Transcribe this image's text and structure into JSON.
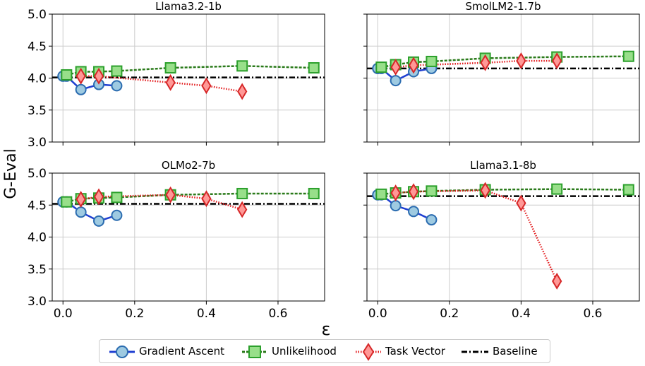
{
  "ylabel": "G-Eval",
  "xlabel": "ε",
  "colors": {
    "gradient_ascent_line": "#1f3fd1",
    "gradient_ascent_marker": "#9ecae1",
    "gradient_ascent_edge": "#2b6cb0",
    "unlikelihood_line": "#2a7a1a",
    "unlikelihood_marker": "#98df8a",
    "unlikelihood_edge": "#2ca02c",
    "task_vector_line": "#e31a1c",
    "task_vector_marker": "#ff9896",
    "task_vector_edge": "#d62728",
    "baseline": "#000000",
    "grid": "#cccccc"
  },
  "legend": {
    "items": [
      {
        "label": "Gradient Ascent",
        "icon": "circle-marker-solid-line"
      },
      {
        "label": "Unlikelihood",
        "icon": "square-marker-dashed-line"
      },
      {
        "label": "Task Vector",
        "icon": "diamond-marker-dotted-line"
      },
      {
        "label": "Baseline",
        "icon": "dash-dot-line"
      }
    ]
  },
  "chart_data": [
    {
      "type": "line",
      "title": "Llama3.2-1b",
      "xlim": [
        -0.03,
        0.73
      ],
      "ylim": [
        3.0,
        5.0
      ],
      "xticks": [
        "0.0",
        "0.2",
        "0.4",
        "0.6"
      ],
      "yticks": [
        "3.0",
        "3.5",
        "4.0",
        "4.5",
        "5.0"
      ],
      "baseline": 4.01,
      "series": [
        {
          "name": "Gradient Ascent",
          "x": [
            0.0,
            0.01,
            0.05,
            0.1,
            0.15
          ],
          "y": [
            4.03,
            4.03,
            3.82,
            3.9,
            3.88
          ]
        },
        {
          "name": "Unlikelihood",
          "x": [
            0.01,
            0.05,
            0.1,
            0.15,
            0.3,
            0.5,
            0.7
          ],
          "y": [
            4.05,
            4.1,
            4.1,
            4.11,
            4.16,
            4.19,
            4.16
          ]
        },
        {
          "name": "Task Vector",
          "x": [
            0.05,
            0.1,
            0.3,
            0.4,
            0.5
          ],
          "y": [
            4.03,
            4.03,
            3.93,
            3.88,
            3.79
          ]
        }
      ]
    },
    {
      "type": "line",
      "title": "SmolLM2-1.7b",
      "xlim": [
        -0.03,
        0.73
      ],
      "ylim": [
        3.0,
        5.0
      ],
      "xticks": [
        "0.0",
        "0.2",
        "0.4",
        "0.6"
      ],
      "yticks": [
        "3.0",
        "3.5",
        "4.0",
        "4.5",
        "5.0"
      ],
      "baseline": 4.15,
      "series": [
        {
          "name": "Gradient Ascent",
          "x": [
            0.0,
            0.01,
            0.05,
            0.1,
            0.15
          ],
          "y": [
            4.15,
            4.15,
            3.96,
            4.1,
            4.15
          ]
        },
        {
          "name": "Unlikelihood",
          "x": [
            0.01,
            0.05,
            0.1,
            0.15,
            0.3,
            0.5,
            0.7
          ],
          "y": [
            4.17,
            4.21,
            4.25,
            4.26,
            4.31,
            4.33,
            4.34
          ]
        },
        {
          "name": "Task Vector",
          "x": [
            0.05,
            0.1,
            0.3,
            0.4,
            0.5
          ],
          "y": [
            4.17,
            4.2,
            4.24,
            4.27,
            4.27
          ]
        }
      ]
    },
    {
      "type": "line",
      "title": "OLMo2-7b",
      "xlim": [
        -0.03,
        0.73
      ],
      "ylim": [
        3.0,
        5.0
      ],
      "xticks": [
        "0.0",
        "0.2",
        "0.4",
        "0.6"
      ],
      "yticks": [
        "3.0",
        "3.5",
        "4.0",
        "4.5",
        "5.0"
      ],
      "baseline": 4.52,
      "series": [
        {
          "name": "Gradient Ascent",
          "x": [
            0.0,
            0.01,
            0.05,
            0.1,
            0.15
          ],
          "y": [
            4.55,
            4.55,
            4.39,
            4.25,
            4.34
          ]
        },
        {
          "name": "Unlikelihood",
          "x": [
            0.01,
            0.05,
            0.1,
            0.15,
            0.3,
            0.5,
            0.7
          ],
          "y": [
            4.55,
            4.6,
            4.61,
            4.62,
            4.66,
            4.68,
            4.68
          ]
        },
        {
          "name": "Task Vector",
          "x": [
            0.05,
            0.1,
            0.3,
            0.4,
            0.5
          ],
          "y": [
            4.59,
            4.63,
            4.66,
            4.6,
            4.43
          ]
        }
      ]
    },
    {
      "type": "line",
      "title": "Llama3.1-8b",
      "xlim": [
        -0.03,
        0.73
      ],
      "ylim": [
        3.0,
        5.0
      ],
      "xticks": [
        "0.0",
        "0.2",
        "0.4",
        "0.6"
      ],
      "yticks": [
        "3.0",
        "3.5",
        "4.0",
        "4.5",
        "5.0"
      ],
      "baseline": 4.64,
      "series": [
        {
          "name": "Gradient Ascent",
          "x": [
            0.0,
            0.01,
            0.05,
            0.1,
            0.15
          ],
          "y": [
            4.66,
            4.66,
            4.49,
            4.4,
            4.27
          ]
        },
        {
          "name": "Unlikelihood",
          "x": [
            0.01,
            0.05,
            0.1,
            0.15,
            0.3,
            0.5,
            0.7
          ],
          "y": [
            4.67,
            4.69,
            4.71,
            4.72,
            4.74,
            4.75,
            4.74
          ]
        },
        {
          "name": "Task Vector",
          "x": [
            0.05,
            0.1,
            0.3,
            0.4,
            0.5
          ],
          "y": [
            4.69,
            4.71,
            4.73,
            4.53,
            3.31
          ]
        }
      ]
    }
  ]
}
